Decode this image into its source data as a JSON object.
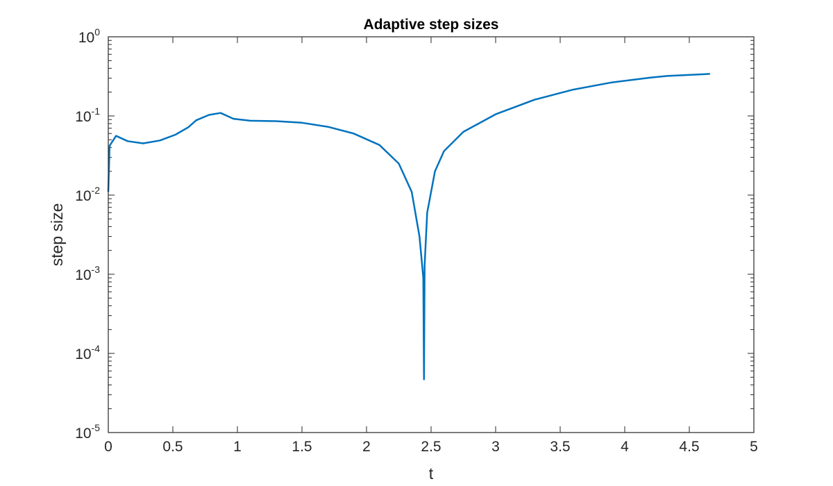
{
  "chart_data": {
    "type": "line",
    "title": "Adaptive step sizes",
    "xlabel": "t",
    "ylabel": "step size",
    "xlim": [
      0,
      5
    ],
    "ylim": [
      1e-05,
      1
    ],
    "yscale": "log",
    "grid": false,
    "legend": null,
    "x_ticks": [
      "0",
      "0.5",
      "1",
      "1.5",
      "2",
      "2.5",
      "3",
      "3.5",
      "4",
      "4.5",
      "5"
    ],
    "y_ticks": [
      "10^-5",
      "10^-4",
      "10^-3",
      "10^-2",
      "10^-1",
      "10^0"
    ],
    "line_color": "#0072BD",
    "series": [
      {
        "name": "step size",
        "x": [
          0.0,
          0.01,
          0.06,
          0.15,
          0.27,
          0.4,
          0.52,
          0.62,
          0.68,
          0.78,
          0.87,
          0.97,
          1.1,
          1.3,
          1.5,
          1.7,
          1.9,
          2.1,
          2.25,
          2.35,
          2.41,
          2.44,
          2.445,
          2.45,
          2.47,
          2.53,
          2.6,
          2.75,
          3.0,
          3.3,
          3.6,
          3.9,
          4.2,
          4.33,
          4.5,
          4.66
        ],
        "y": [
          0.011,
          0.042,
          0.056,
          0.048,
          0.045,
          0.049,
          0.058,
          0.072,
          0.088,
          0.103,
          0.109,
          0.092,
          0.087,
          0.086,
          0.082,
          0.073,
          0.06,
          0.043,
          0.025,
          0.011,
          0.003,
          0.0009,
          4.7e-05,
          0.0013,
          0.006,
          0.02,
          0.036,
          0.063,
          0.105,
          0.16,
          0.215,
          0.265,
          0.305,
          0.32,
          0.33,
          0.34
        ]
      }
    ]
  }
}
